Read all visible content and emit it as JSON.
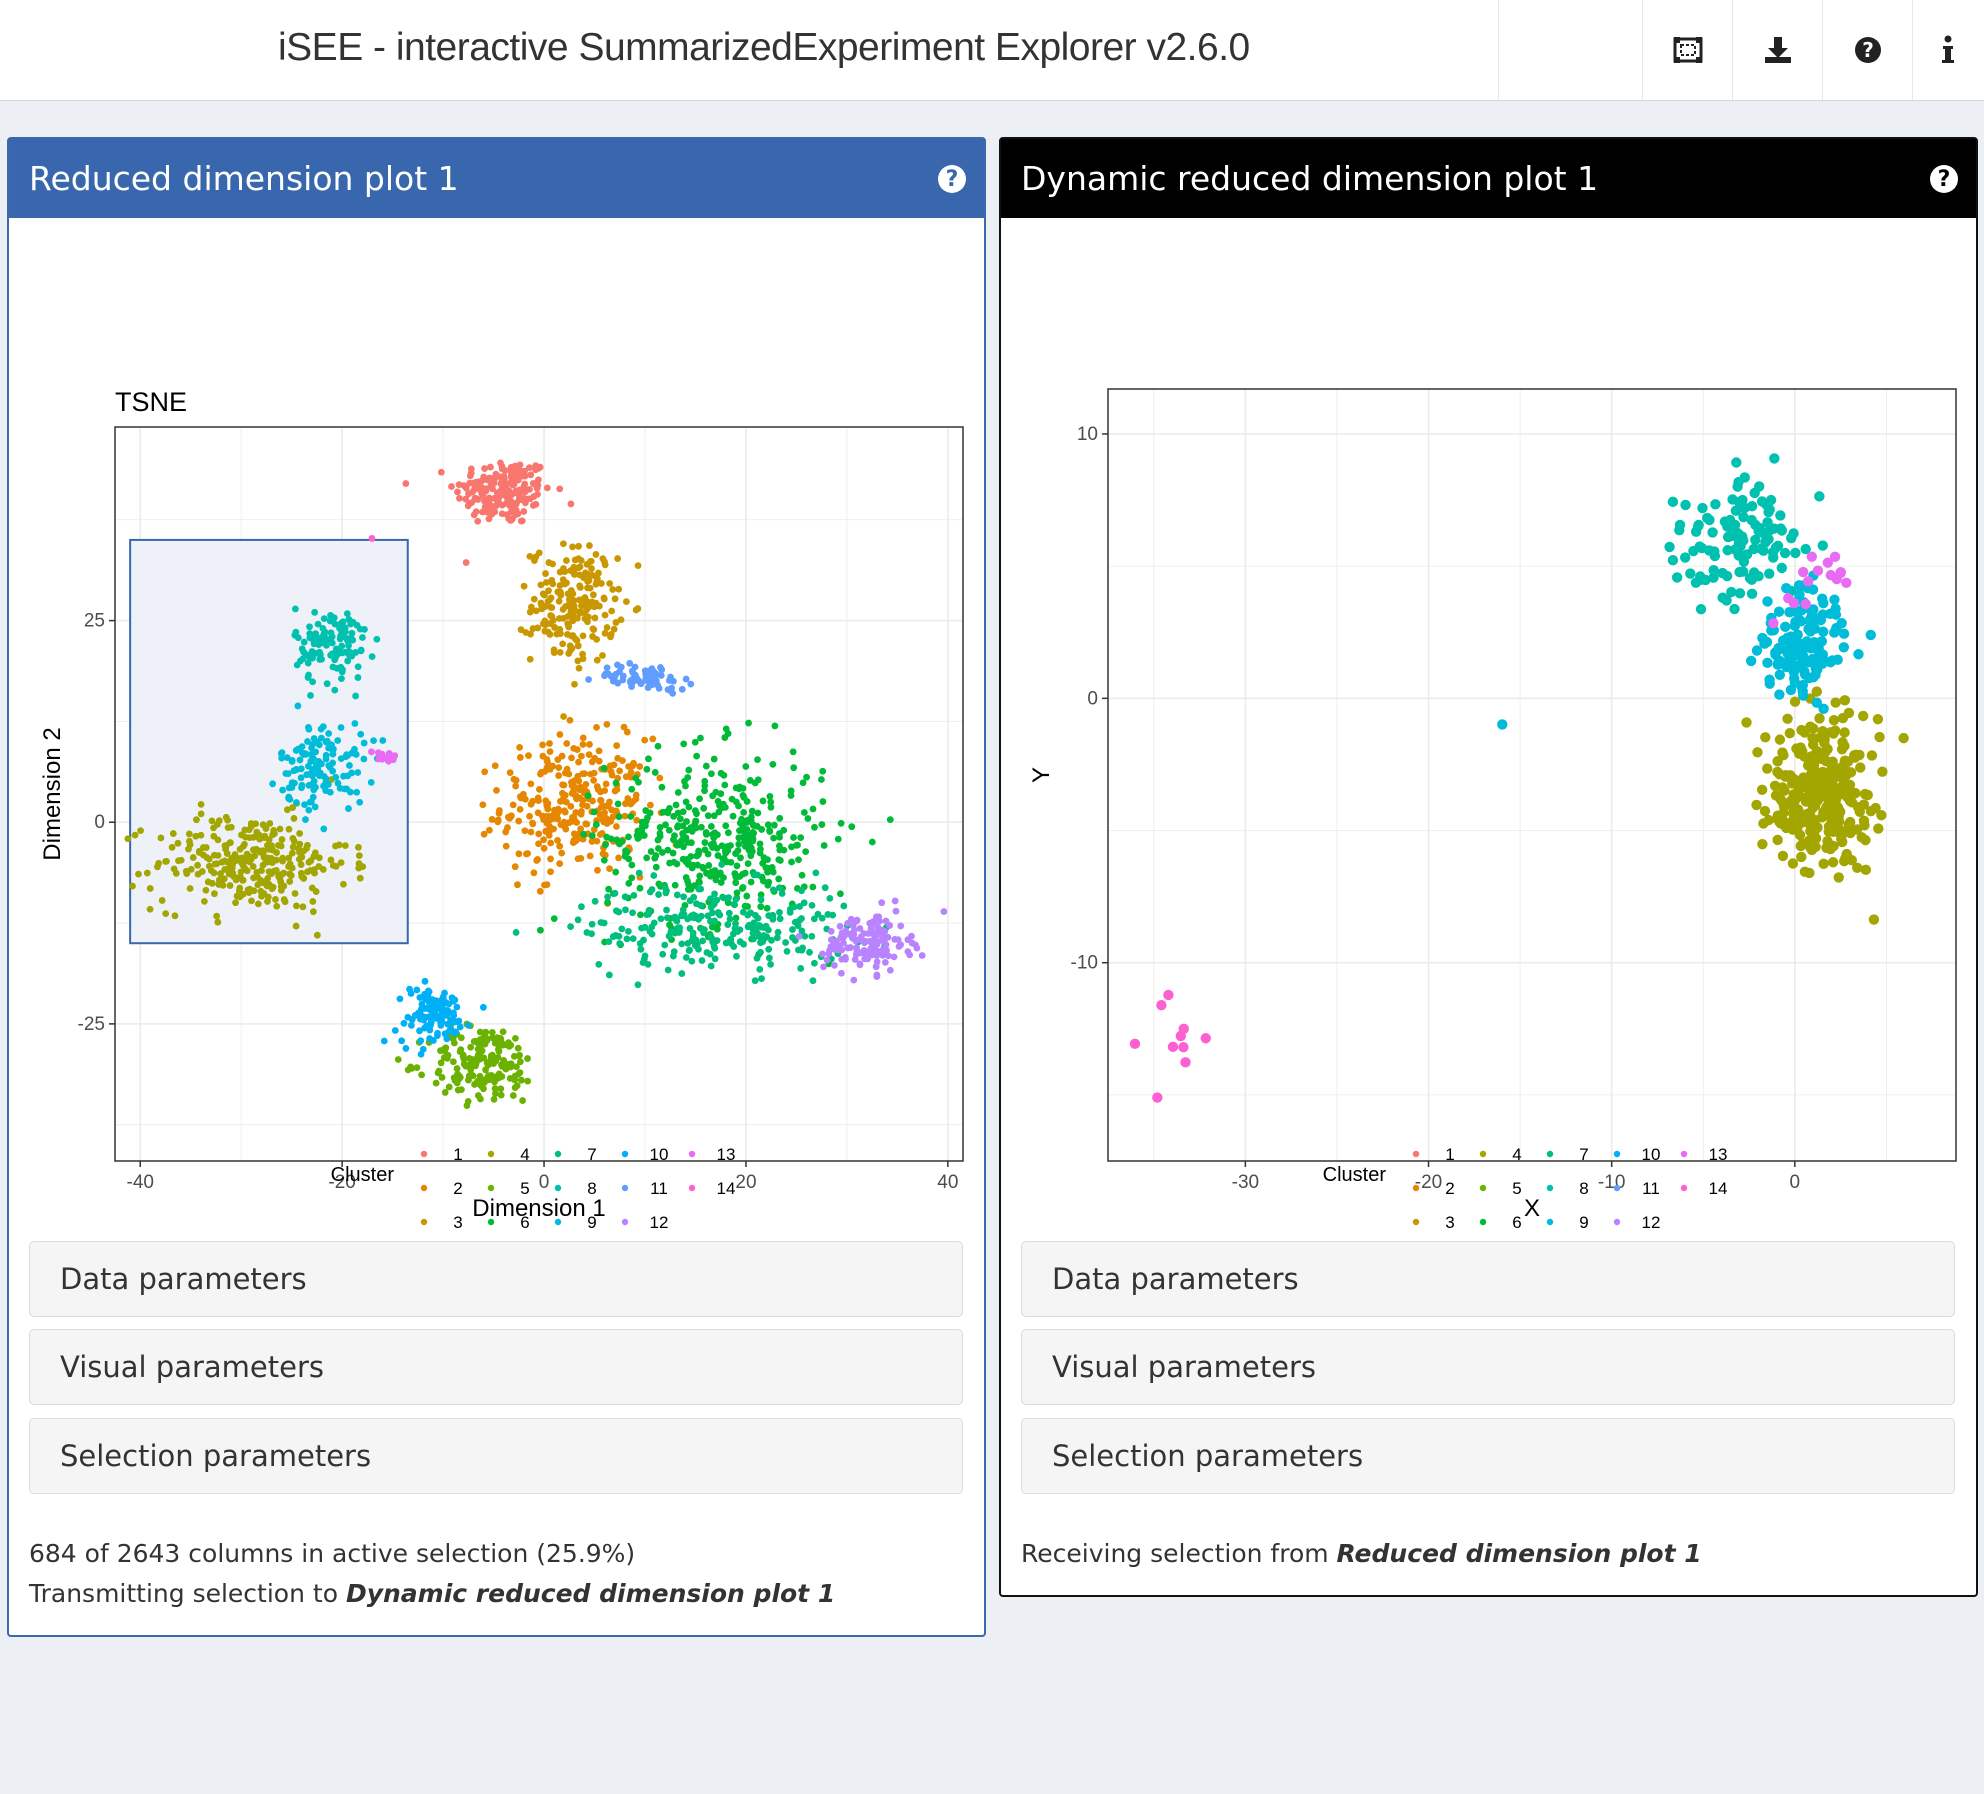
{
  "app": {
    "title": "iSEE - interactive SummarizedExperiment Explorer v2.6.0"
  },
  "navbar": {
    "icons": [
      "tour-icon",
      "download-icon",
      "help-icon",
      "info-icon"
    ]
  },
  "legend": {
    "title": "Cluster",
    "items": [
      "1",
      "2",
      "3",
      "4",
      "5",
      "6",
      "7",
      "8",
      "9",
      "10",
      "11",
      "12",
      "13",
      "14"
    ],
    "colors": [
      "#F8766D",
      "#E58700",
      "#C99800",
      "#A3A500",
      "#6BB100",
      "#00BA38",
      "#00BF7D",
      "#00C0AF",
      "#00BCD8",
      "#00B0F6",
      "#619CFF",
      "#B983FF",
      "#E76BF3",
      "#FD61D1"
    ]
  },
  "panel1": {
    "header": "Reduced dimension plot 1",
    "plot_title": "TSNE",
    "collapses": [
      "Data parameters",
      "Visual parameters",
      "Selection parameters"
    ],
    "status_line1": "684 of 2643 columns in active selection (25.9%)",
    "status_line2_prefix": "Transmitting selection to ",
    "status_line2_target": "Dynamic reduced dimension plot 1"
  },
  "panel2": {
    "header": "Dynamic reduced dimension plot 1",
    "collapses": [
      "Data parameters",
      "Visual parameters",
      "Selection parameters"
    ],
    "status_prefix": "Receiving selection from ",
    "status_target": "Reduced dimension plot 1"
  },
  "chart_data": [
    {
      "type": "scatter",
      "title": "TSNE",
      "xlabel": "Dimension 1",
      "ylabel": "Dimension 2",
      "xlim": [
        -42.5,
        41.5
      ],
      "ylim": [
        -42,
        49
      ],
      "xticks": [
        -40,
        -20,
        0,
        20,
        40
      ],
      "yticks": [
        -25,
        0,
        25
      ],
      "grid": true,
      "legend_position": "bottom",
      "brush": {
        "x": [
          -41,
          -13.5
        ],
        "y": [
          -15,
          35
        ]
      },
      "clusters": [
        {
          "name": "1",
          "center": [
            -4,
            41
          ],
          "spread": [
            4,
            3.5
          ],
          "n": 180
        },
        {
          "name": "2",
          "center": [
            3,
            2
          ],
          "spread": [
            6,
            7
          ],
          "n": 300
        },
        {
          "name": "3",
          "center": [
            3,
            27
          ],
          "spread": [
            3.5,
            6
          ],
          "n": 200
        },
        {
          "name": "4",
          "center": [
            -29,
            -5
          ],
          "spread": [
            8,
            5
          ],
          "n": 290
        },
        {
          "name": "5",
          "center": [
            -6,
            -30
          ],
          "spread": [
            4.5,
            4
          ],
          "n": 170
        },
        {
          "name": "6",
          "center": [
            17,
            -2
          ],
          "spread": [
            9,
            9
          ],
          "n": 400
        },
        {
          "name": "7",
          "center": [
            17,
            -13
          ],
          "spread": [
            11,
            4.5
          ],
          "n": 250
        },
        {
          "name": "8",
          "center": [
            -21,
            22
          ],
          "spread": [
            3,
            4
          ],
          "n": 120
        },
        {
          "name": "9",
          "center": [
            -22,
            7
          ],
          "spread": [
            3.5,
            4.5
          ],
          "n": 130
        },
        {
          "name": "10",
          "center": [
            -11,
            -24
          ],
          "spread": [
            3,
            3
          ],
          "n": 110
        },
        {
          "name": "11",
          "center": [
            10,
            18
          ],
          "spread": [
            4,
            1.3
          ],
          "n": 70
        },
        {
          "name": "12",
          "center": [
            32,
            -15
          ],
          "spread": [
            3.5,
            3
          ],
          "n": 140
        },
        {
          "name": "13",
          "center": [
            -16,
            8
          ],
          "spread": [
            1.2,
            0.8
          ],
          "n": 15
        },
        {
          "name": "14",
          "center": [
            -17,
            35
          ],
          "spread": [
            0.3,
            0.3
          ],
          "n": 1
        }
      ]
    },
    {
      "type": "scatter",
      "xlabel": "X",
      "ylabel": "Y",
      "xlim": [
        -37.5,
        8.8
      ],
      "ylim": [
        -17.5,
        11.7
      ],
      "xticks": [
        -30,
        -20,
        -10,
        0
      ],
      "yticks": [
        -10,
        0,
        10
      ],
      "grid": true,
      "legend_position": "bottom",
      "clusters": [
        {
          "name": "4",
          "center": [
            1.5,
            -3.5
          ],
          "spread": [
            2.5,
            2.5
          ],
          "n": 290
        },
        {
          "name": "8",
          "center": [
            -3,
            6
          ],
          "spread": [
            3,
            2
          ],
          "n": 120
        },
        {
          "name": "9",
          "center": [
            0.5,
            2
          ],
          "spread": [
            2,
            2
          ],
          "n": 130
        },
        {
          "name": "13",
          "center": [
            1.5,
            4.5
          ],
          "spread": [
            2,
            1.5
          ],
          "n": 15
        },
        {
          "name": "14",
          "center": [
            -34,
            -12.8
          ],
          "spread": [
            1.5,
            1.4
          ],
          "n": 10
        },
        {
          "name": "9",
          "center": [
            -16,
            -1
          ],
          "spread": [
            0.05,
            0.05
          ],
          "n": 1
        }
      ]
    }
  ]
}
